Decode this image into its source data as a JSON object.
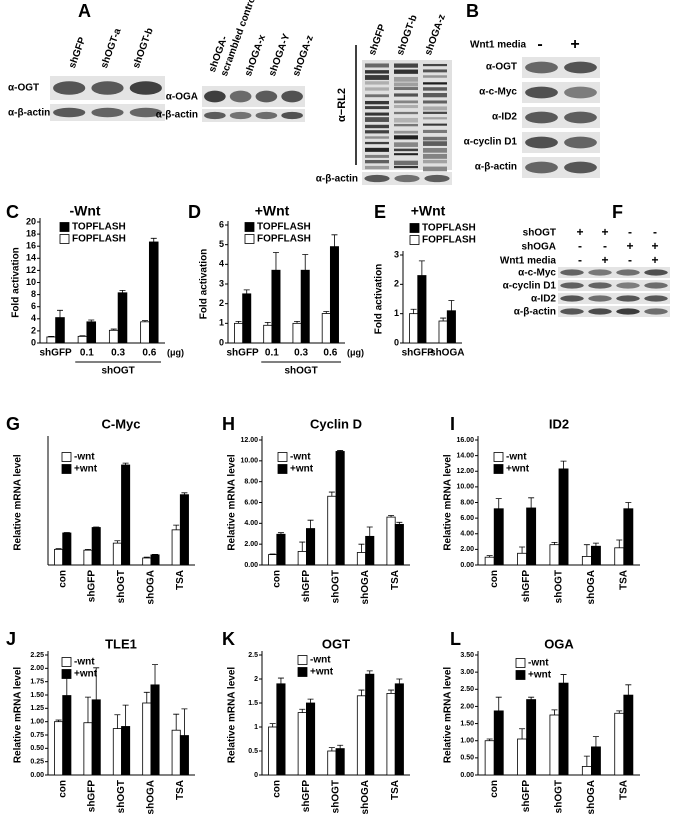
{
  "blots": {
    "A": {
      "label": "A",
      "panel1": {
        "lanes": [
          "shGFP",
          "shOGT-a",
          "shOGT-b"
        ],
        "rows": [
          "α-OGT",
          "α-β-actin"
        ]
      },
      "panel2": {
        "lanes": [
          [
            "shOGA-",
            "scrambled control"
          ],
          "shOGA-x",
          "shOGA-Y",
          "shOGA-z"
        ],
        "rows": [
          "α-OGA",
          "α-β-actin"
        ]
      },
      "panel3": {
        "lanes": [
          "shGFP",
          "shOGT-b",
          "shOGA-z"
        ],
        "rows": [
          "α−RL2",
          "α-β-actin"
        ]
      }
    },
    "B": {
      "label": "B",
      "header": "Wnt1 media",
      "conditions": [
        "-",
        "+"
      ],
      "rows": [
        "α-OGT",
        "α-c-Myc",
        "α-ID2",
        "α-cyclin D1",
        "α-β-actin"
      ]
    },
    "F": {
      "label": "F",
      "conditions": [
        {
          "name": "shOGT",
          "signs": [
            "+",
            "+",
            "-",
            "-"
          ]
        },
        {
          "name": "shOGA",
          "signs": [
            "-",
            "-",
            "+",
            "+"
          ]
        },
        {
          "name": "Wnt1 media",
          "signs": [
            "-",
            "+",
            "-",
            "+"
          ]
        }
      ],
      "rows": [
        "α-c-Myc",
        "α-cyclin D1",
        "α-ID2",
        "α-β-actin"
      ]
    }
  },
  "chart_data": [
    {
      "type": "bar",
      "label": "C",
      "title": "-Wnt",
      "ylabel": "Fold activation",
      "categories": [
        "shGFP",
        "0.1",
        "0.3",
        "0.6"
      ],
      "x_group_label": "shOGT",
      "x_unit": "(μg)",
      "series": [
        {
          "name": "TOPFLASH",
          "color": "#000000",
          "values": [
            4.2,
            3.5,
            8.3,
            16.7
          ],
          "errors": [
            1.2,
            0.3,
            0.4,
            0.6
          ]
        },
        {
          "name": "FOPFLASH",
          "color": "#ffffff",
          "values": [
            1.0,
            1.1,
            2.1,
            3.5
          ],
          "errors": [
            0.1,
            0.1,
            0.2,
            0.2
          ]
        }
      ],
      "ylim": [
        0,
        20
      ],
      "yticks": [
        0,
        2,
        4,
        6,
        8,
        10,
        12,
        14,
        16,
        18,
        20
      ]
    },
    {
      "type": "bar",
      "label": "D",
      "title": "+Wnt",
      "ylabel": "Fold activation",
      "categories": [
        "shGFP",
        "0.1",
        "0.3",
        "0.6"
      ],
      "x_group_label": "shOGT",
      "x_unit": "(μg)",
      "series": [
        {
          "name": "TOPFLASH",
          "color": "#000000",
          "values": [
            2.5,
            3.7,
            3.7,
            4.9
          ],
          "errors": [
            0.2,
            0.9,
            0.8,
            0.6
          ]
        },
        {
          "name": "FOPFLASH",
          "color": "#ffffff",
          "values": [
            1.0,
            0.9,
            1.0,
            1.5
          ],
          "errors": [
            0.1,
            0.15,
            0.1,
            0.1
          ]
        }
      ],
      "ylim": [
        0,
        6
      ],
      "yticks": [
        0,
        1,
        2,
        3,
        4,
        5,
        6
      ]
    },
    {
      "type": "bar",
      "label": "E",
      "title": "+Wnt",
      "ylabel": "Fold activation",
      "categories": [
        "shGFP",
        "shOGA"
      ],
      "series": [
        {
          "name": "TOPFLASH",
          "color": "#000000",
          "values": [
            2.3,
            1.1
          ],
          "errors": [
            0.5,
            0.35
          ]
        },
        {
          "name": "FOPFLASH",
          "color": "#ffffff",
          "values": [
            1.0,
            0.75
          ],
          "errors": [
            0.15,
            0.1
          ]
        }
      ],
      "ylim": [
        0,
        3
      ],
      "yticks": [
        0,
        1,
        2,
        3
      ]
    },
    {
      "type": "bar",
      "label": "G",
      "title": "C-Myc",
      "ylabel": "Relative mRNA level",
      "categories": [
        "con",
        "shGFP",
        "shOGT",
        "shOGA",
        "TSA"
      ],
      "series": [
        {
          "name": "-wnt",
          "color": "#ffffff",
          "values": [
            1.0,
            0.95,
            1.4,
            0.45,
            2.25
          ],
          "errors": [
            0.05,
            0.05,
            0.15,
            0.05,
            0.3
          ]
        },
        {
          "name": "+wnt",
          "color": "#000000",
          "values": [
            2.05,
            2.4,
            6.4,
            0.65,
            4.5
          ],
          "errors": [
            0.03,
            0.03,
            0.12,
            0.03,
            0.12
          ]
        }
      ],
      "ylim": [
        0,
        8
      ]
    },
    {
      "type": "bar",
      "label": "H",
      "title": "Cyclin D",
      "ylabel": "Relative mRNA level",
      "categories": [
        "con",
        "shGFP",
        "shOGT",
        "shOGA",
        "TSA"
      ],
      "series": [
        {
          "name": "-wnt",
          "color": "#ffffff",
          "values": [
            1.0,
            1.3,
            6.6,
            1.2,
            4.6
          ],
          "errors": [
            0.05,
            0.9,
            0.4,
            0.8,
            0.15
          ]
        },
        {
          "name": "+wnt",
          "color": "#000000",
          "values": [
            2.95,
            3.5,
            10.9,
            2.75,
            3.9
          ],
          "errors": [
            0.15,
            0.8,
            0.1,
            0.9,
            0.2
          ]
        }
      ],
      "ylim": [
        0,
        12
      ],
      "yticks": [
        {
          "value": 0,
          "label": "0.00"
        },
        {
          "value": 2,
          "label": "2.00"
        },
        {
          "value": 4,
          "label": "4.00"
        },
        {
          "value": 6,
          "label": "6.00"
        },
        {
          "value": 8,
          "label": "8.00"
        },
        {
          "value": 10,
          "label": "10.00"
        },
        {
          "value": 12,
          "label": "12.00"
        }
      ]
    },
    {
      "type": "bar",
      "label": "I",
      "title": "ID2",
      "ylabel": "Relative mRNA level",
      "categories": [
        "con",
        "shGFP",
        "shOGT",
        "shOGA",
        "TSA"
      ],
      "series": [
        {
          "name": "-wnt",
          "color": "#ffffff",
          "values": [
            1.0,
            1.5,
            2.6,
            1.1,
            2.2
          ],
          "errors": [
            0.2,
            0.8,
            0.3,
            1.5,
            1.0
          ]
        },
        {
          "name": "+wnt",
          "color": "#000000",
          "values": [
            7.2,
            7.3,
            12.3,
            2.4,
            7.2
          ],
          "errors": [
            1.3,
            1.3,
            1.0,
            0.4,
            0.8
          ]
        }
      ],
      "ylim": [
        0,
        16
      ],
      "yticks": [
        {
          "value": 0,
          "label": "0.00"
        },
        {
          "value": 2,
          "label": "2.00"
        },
        {
          "value": 4,
          "label": "4.00"
        },
        {
          "value": 6,
          "label": "6.00"
        },
        {
          "value": 8,
          "label": "8.00"
        },
        {
          "value": 10,
          "label": "10.00"
        },
        {
          "value": 12,
          "label": "12.00"
        },
        {
          "value": 14,
          "label": "14.00"
        },
        {
          "value": 16,
          "label": "16.00"
        }
      ]
    },
    {
      "type": "bar",
      "label": "J",
      "title": "TLE1",
      "ylabel": "Relative mRNA level",
      "categories": [
        "con",
        "shGFP",
        "shOGT",
        "shOGA",
        "TSA"
      ],
      "series": [
        {
          "name": "-wnt",
          "color": "#ffffff",
          "values": [
            1.0,
            0.98,
            0.87,
            1.35,
            0.84
          ],
          "errors": [
            0.03,
            0.48,
            0.26,
            0.2,
            0.3
          ]
        },
        {
          "name": "+wnt",
          "color": "#000000",
          "values": [
            1.49,
            1.41,
            0.91,
            1.69,
            0.74
          ],
          "errors": [
            0.34,
            0.6,
            0.4,
            0.38,
            0.5
          ]
        }
      ],
      "ylim": [
        0,
        2.25
      ],
      "yticks": [
        {
          "value": 0,
          "label": "0.00"
        },
        0.25,
        {
          "value": 0.5,
          "label": "0.50"
        },
        0.75,
        {
          "value": 1,
          "label": "1.00"
        },
        1.25,
        {
          "value": 1.5,
          "label": "1.50"
        },
        1.75,
        {
          "value": 2,
          "label": "2.00"
        },
        2.25
      ]
    },
    {
      "type": "bar",
      "label": "K",
      "title": "OGT",
      "ylabel": "Relative mRNA level",
      "categories": [
        "con",
        "shGFP",
        "shOGT",
        "shOGA",
        "TSA"
      ],
      "series": [
        {
          "name": "-wnt",
          "color": "#ffffff",
          "values": [
            1.0,
            1.3,
            0.5,
            1.65,
            1.7
          ],
          "errors": [
            0.07,
            0.07,
            0.07,
            0.12,
            0.07
          ]
        },
        {
          "name": "+wnt",
          "color": "#000000",
          "values": [
            1.9,
            1.5,
            0.55,
            2.1,
            1.9
          ],
          "errors": [
            0.12,
            0.08,
            0.07,
            0.07,
            0.1
          ]
        }
      ],
      "ylim": [
        0,
        2.5
      ],
      "yticks": [
        0,
        0.5,
        1,
        1.5,
        2,
        2.5
      ]
    },
    {
      "type": "bar",
      "label": "L",
      "title": "OGA",
      "ylabel": "Relative mRNA level",
      "categories": [
        "con",
        "shGFP",
        "shOGT",
        "shOGA",
        "TSA"
      ],
      "series": [
        {
          "name": "-wnt",
          "color": "#ffffff",
          "values": [
            1.0,
            1.05,
            1.75,
            0.25,
            1.8
          ],
          "errors": [
            0.05,
            0.3,
            0.15,
            0.3,
            0.07
          ]
        },
        {
          "name": "+wnt",
          "color": "#000000",
          "values": [
            1.87,
            2.2,
            2.68,
            0.82,
            2.33
          ],
          "errors": [
            0.4,
            0.07,
            0.25,
            0.3,
            0.3
          ]
        }
      ],
      "ylim": [
        0,
        3.5
      ],
      "yticks": [
        {
          "value": 0,
          "label": "0.00"
        },
        {
          "value": 0.5,
          "label": "0.50"
        },
        {
          "value": 1,
          "label": "1.00"
        },
        {
          "value": 1.5,
          "label": "1.50"
        },
        {
          "value": 2,
          "label": "2.00"
        },
        {
          "value": 2.5,
          "label": "2.50"
        },
        {
          "value": 3,
          "label": "3.00"
        },
        {
          "value": 3.5,
          "label": "3.50"
        }
      ]
    }
  ]
}
